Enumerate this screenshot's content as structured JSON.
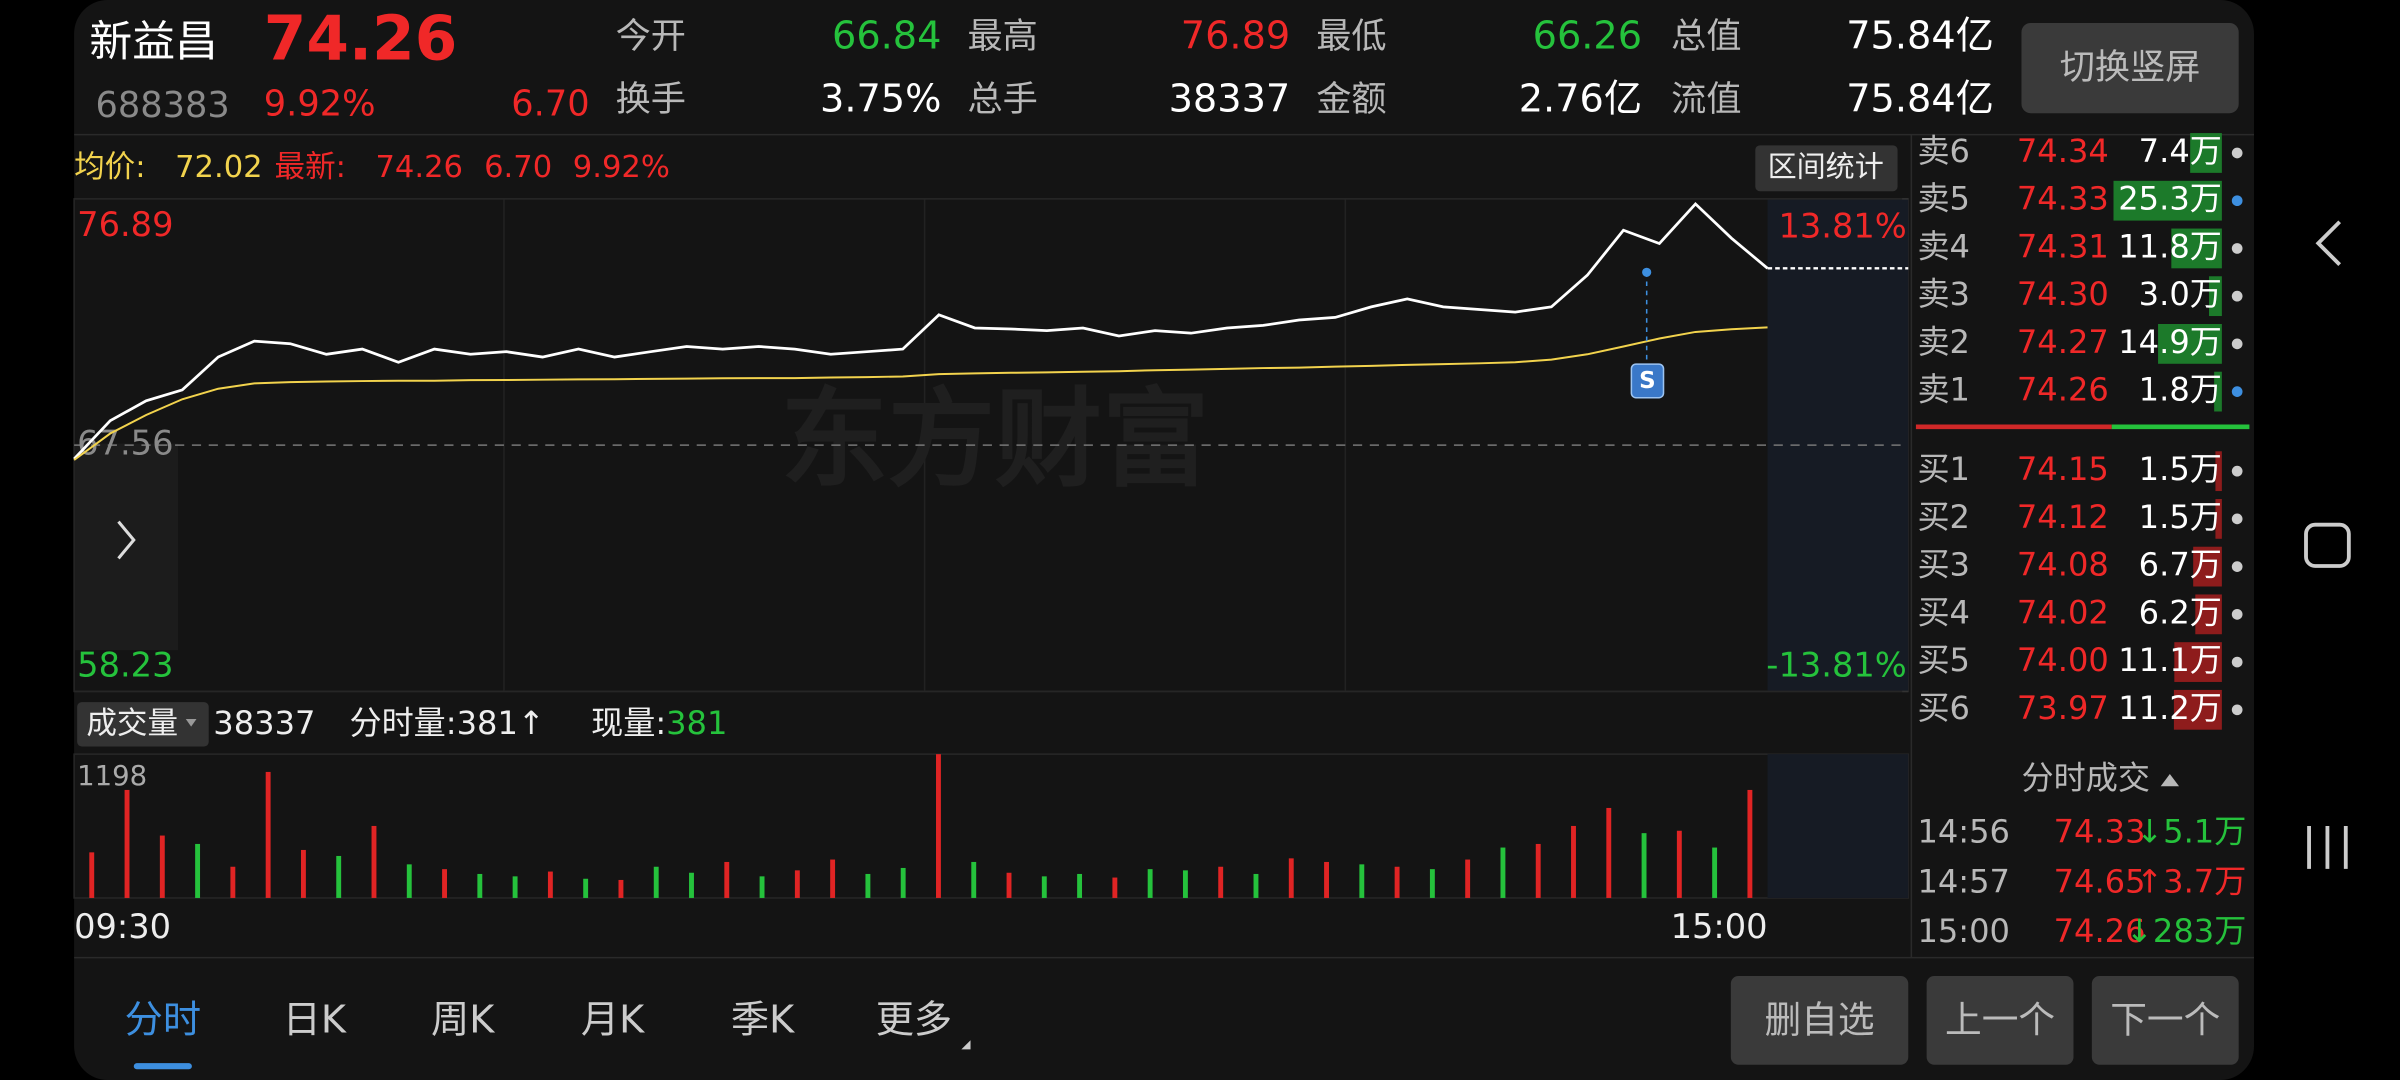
{
  "header": {
    "name": "新益昌",
    "price": "74.26",
    "code": "688383",
    "change_pct": "9.92%",
    "change": "6.70",
    "fields": [
      {
        "label": "今开",
        "value": "66.84",
        "color": "#25c23c"
      },
      {
        "label": "最高",
        "value": "76.89",
        "color": "#f02828"
      },
      {
        "label": "最低",
        "value": "66.26",
        "color": "#25c23c"
      },
      {
        "label": "总值",
        "value": "75.84亿",
        "color": "#ffffff"
      },
      {
        "label": "换手",
        "value": "3.75%",
        "color": "#ffffff"
      },
      {
        "label": "总手",
        "value": "38337",
        "color": "#ffffff"
      },
      {
        "label": "金额",
        "value": "2.76亿",
        "color": "#ffffff"
      },
      {
        "label": "流值",
        "value": "75.84亿",
        "color": "#ffffff"
      }
    ],
    "orientation_button": "切换竖屏"
  },
  "chart_data": [
    {
      "type": "line",
      "avg_label": "均价:",
      "avg": "72.02",
      "latest_label": "最新:",
      "latest": "74.26",
      "change": "6.70",
      "change_pct": "9.92%",
      "stats_button": "区间统计",
      "watermark": "东方财富",
      "marker": "S",
      "ylim": [
        58.23,
        76.89
      ],
      "yticks": [
        58.23,
        67.56,
        76.89
      ],
      "y2lim": [
        -13.81,
        13.81
      ],
      "y2ticks": [
        {
          "value": -13.81,
          "label": "-13.81%"
        },
        {
          "value": 13.81,
          "label": "13.81%"
        }
      ],
      "series": [
        {
          "name": "price",
          "color": "#ffffff",
          "values": [
            67.04,
            68.49,
            69.24,
            69.65,
            70.9,
            71.5,
            71.4,
            71.0,
            71.2,
            70.7,
            71.2,
            71.0,
            71.1,
            70.9,
            71.2,
            70.9,
            71.1,
            71.3,
            71.2,
            71.3,
            71.2,
            71.0,
            71.1,
            71.2,
            72.5,
            72.0,
            71.96,
            71.9,
            72.0,
            71.7,
            71.9,
            71.8,
            72.0,
            72.1,
            72.3,
            72.4,
            72.8,
            73.1,
            72.8,
            72.7,
            72.6,
            72.8,
            74.0,
            75.7,
            75.2,
            76.7,
            75.4,
            74.26
          ]
        },
        {
          "name": "avg",
          "color": "#f2d34d",
          "values": [
            67.0,
            68.0,
            68.7,
            69.3,
            69.7,
            69.9,
            69.95,
            69.97,
            69.99,
            70.0,
            70.0,
            70.02,
            70.03,
            70.04,
            70.05,
            70.06,
            70.07,
            70.08,
            70.09,
            70.1,
            70.1,
            70.12,
            70.14,
            70.16,
            70.25,
            70.28,
            70.3,
            70.32,
            70.34,
            70.36,
            70.4,
            70.42,
            70.45,
            70.48,
            70.5,
            70.53,
            70.56,
            70.6,
            70.63,
            70.66,
            70.7,
            70.8,
            71.0,
            71.3,
            71.6,
            71.85,
            71.95,
            72.02
          ]
        }
      ]
    },
    {
      "type": "bar",
      "selector": "成交量",
      "total": "38337",
      "minute_label": "分时量:381↑",
      "current_label": "现量:",
      "current": "381",
      "ylim": [
        0,
        1198
      ],
      "yticks": [
        1198
      ],
      "time_labels": [
        "09:30",
        "15:00"
      ],
      "values": [
        380,
        900,
        520,
        450,
        260,
        1050,
        400,
        350,
        600,
        280,
        240,
        200,
        180,
        220,
        160,
        150,
        260,
        210,
        300,
        180,
        230,
        320,
        200,
        250,
        1198,
        300,
        210,
        180,
        200,
        170,
        240,
        230,
        260,
        200,
        330,
        300,
        280,
        260,
        240,
        320,
        420,
        450,
        600,
        750,
        540,
        560,
        420,
        900
      ],
      "colors": [
        "#e02424",
        "#e02424",
        "#e02424",
        "#25c23c",
        "#e02424",
        "#e02424",
        "#e02424",
        "#25c23c",
        "#e02424",
        "#25c23c",
        "#e02424",
        "#25c23c",
        "#25c23c",
        "#e02424",
        "#25c23c",
        "#e02424",
        "#25c23c",
        "#25c23c",
        "#e02424",
        "#25c23c",
        "#e02424",
        "#e02424",
        "#25c23c",
        "#25c23c",
        "#e02424",
        "#25c23c",
        "#e02424",
        "#25c23c",
        "#25c23c",
        "#e02424",
        "#25c23c",
        "#25c23c",
        "#e02424",
        "#25c23c",
        "#e02424",
        "#e02424",
        "#25c23c",
        "#e02424",
        "#25c23c",
        "#e02424",
        "#25c23c",
        "#e02424",
        "#e02424",
        "#e02424",
        "#25c23c",
        "#e02424",
        "#25c23c",
        "#e02424"
      ]
    }
  ],
  "order_book": {
    "asks": [
      {
        "label": "卖6",
        "price": "74.34",
        "volume": 7.4,
        "volume_label": "7.4万",
        "dot": "#cccccc"
      },
      {
        "label": "卖5",
        "price": "74.33",
        "volume": 25.3,
        "volume_label": "25.3万",
        "dot": "#3d8fe0"
      },
      {
        "label": "卖4",
        "price": "74.31",
        "volume": 11.8,
        "volume_label": "11.8万",
        "dot": "#cccccc"
      },
      {
        "label": "卖3",
        "price": "74.30",
        "volume": 3.0,
        "volume_label": "3.0万",
        "dot": "#cccccc"
      },
      {
        "label": "卖2",
        "price": "74.27",
        "volume": 14.9,
        "volume_label": "14.9万",
        "dot": "#cccccc"
      },
      {
        "label": "卖1",
        "price": "74.26",
        "volume": 1.8,
        "volume_label": "1.8万",
        "dot": "#3d8fe0"
      }
    ],
    "bids": [
      {
        "label": "买1",
        "price": "74.15",
        "volume": 1.5,
        "volume_label": "1.5万",
        "dot": "#cccccc"
      },
      {
        "label": "买2",
        "price": "74.12",
        "volume": 1.5,
        "volume_label": "1.5万",
        "dot": "#cccccc"
      },
      {
        "label": "买3",
        "price": "74.08",
        "volume": 6.7,
        "volume_label": "6.7万",
        "dot": "#cccccc"
      },
      {
        "label": "买4",
        "price": "74.02",
        "volume": 6.2,
        "volume_label": "6.2万",
        "dot": "#cccccc"
      },
      {
        "label": "买5",
        "price": "74.00",
        "volume": 11.1,
        "volume_label": "11.1万",
        "dot": "#cccccc"
      },
      {
        "label": "买6",
        "price": "73.97",
        "volume": 11.2,
        "volume_label": "11.2万",
        "dot": "#cccccc"
      }
    ]
  },
  "trades": {
    "title": "分时成交",
    "rows": [
      {
        "time": "14:56",
        "price": "74.33",
        "volume": "↓5.1万",
        "color": "#25c23c"
      },
      {
        "time": "14:57",
        "price": "74.65",
        "volume": "↑3.7万",
        "color": "#f02828"
      },
      {
        "time": "15:00",
        "price": "74.26",
        "volume": "↓283万",
        "color": "#25c23c"
      }
    ]
  },
  "tabs": [
    "分时",
    "日K",
    "周K",
    "月K",
    "季K",
    "更多"
  ],
  "active_tab": 0,
  "buttons": [
    "删自选",
    "上一个",
    "下一个"
  ]
}
